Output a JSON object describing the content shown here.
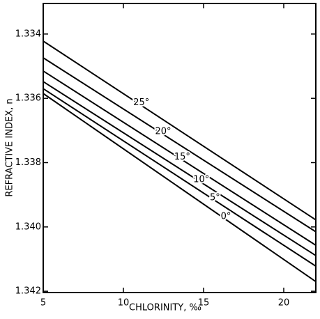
{
  "chart_data": {
    "type": "line",
    "xlabel": "CHLORINITY, ‰",
    "ylabel": "REFRACTIVE INDEX, n",
    "x": [
      5,
      22
    ],
    "series": [
      {
        "name": "25°",
        "color": "#000000",
        "values": [
          1.33422,
          1.33978
        ]
      },
      {
        "name": "20°",
        "color": "#000000",
        "values": [
          1.33474,
          1.34015
        ]
      },
      {
        "name": "15°",
        "color": "#000000",
        "values": [
          1.33515,
          1.34057
        ]
      },
      {
        "name": "10°",
        "color": "#000000",
        "values": [
          1.33548,
          1.34089
        ]
      },
      {
        "name": "5°",
        "color": "#000000",
        "values": [
          1.3357,
          1.34122
        ]
      },
      {
        "name": "0°",
        "color": "#000000",
        "values": [
          1.33585,
          1.3417
        ]
      }
    ],
    "xlim": [
      5,
      22
    ],
    "xticks": [
      5,
      10,
      15,
      20
    ],
    "ylim": [
      1.33305,
      1.34204
    ],
    "y_inverted": true,
    "yticks": [
      1.334,
      1.336,
      1.338,
      {
        "value": 1.34,
        "label": "1.340"
      },
      1.342
    ],
    "grid": false
  }
}
